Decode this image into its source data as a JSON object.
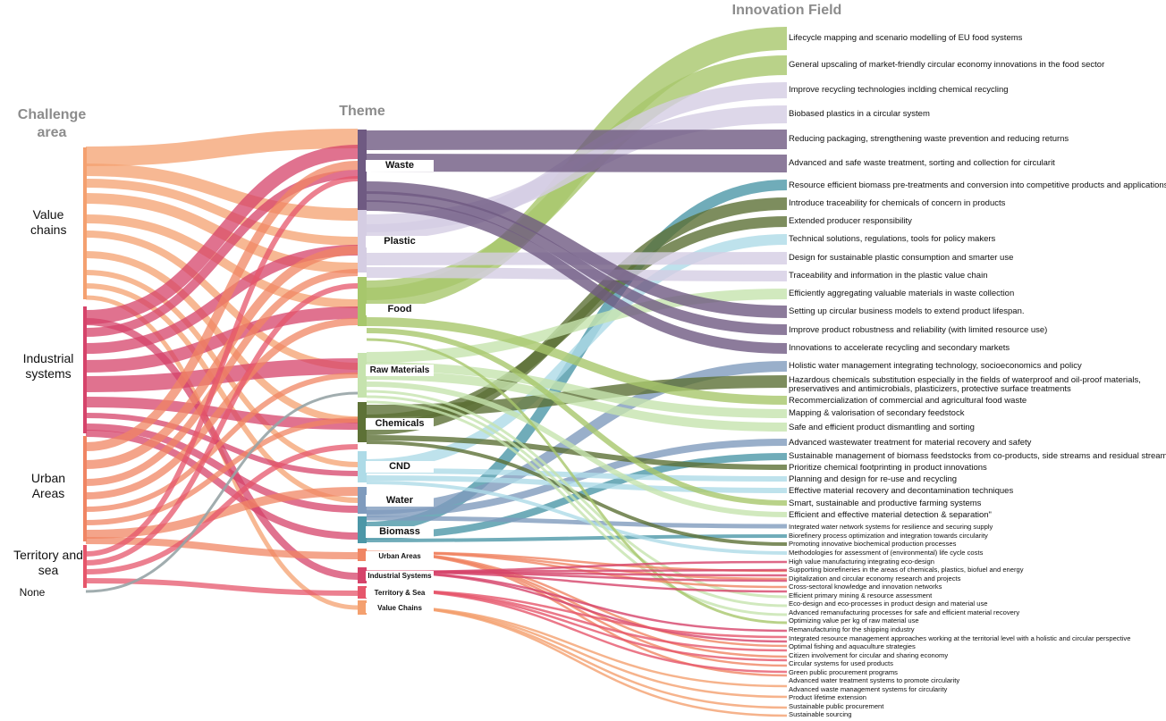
{
  "headers": {
    "challenge_area": "Challenge area",
    "theme": "Theme",
    "innovation_field": "Innovation Field"
  },
  "challenge_areas": [
    {
      "label": "Value chains",
      "color": "#f4a06f"
    },
    {
      "label": "Industrial systems",
      "color": "#d6436a"
    },
    {
      "label": "Urban Areas",
      "color": "#f08563"
    },
    {
      "label": "Territory and sea",
      "color": "#e6566b"
    },
    {
      "label": "None",
      "color": "#97a4a6"
    }
  ],
  "themes": [
    {
      "label": "Waste",
      "color": "#6f5a82"
    },
    {
      "label": "Plastic",
      "color": "#d5cde3"
    },
    {
      "label": "Food",
      "color": "#a7c76c"
    },
    {
      "label": "Raw Materials",
      "color": "#c6e3ae"
    },
    {
      "label": "Chemicals",
      "color": "#5d7136"
    },
    {
      "label": "CND",
      "color": "#aedbe7"
    },
    {
      "label": "Water",
      "color": "#7f9bbd"
    },
    {
      "label": "Biomass",
      "color": "#4c97a7"
    },
    {
      "label": "Urban Areas",
      "color": "#f08563"
    },
    {
      "label": "Industrial Systems",
      "color": "#d6436a"
    },
    {
      "label": "Territory & Sea",
      "color": "#e6566b"
    },
    {
      "label": "Value Chains",
      "color": "#f4a06f"
    }
  ],
  "innovation_fields": [
    "Lifecycle mapping and scenario modelling of EU food systems",
    "General upscaling of market-friendly circular economy innovations in the food sector",
    "Improve recycling technologies inclding chemical recycling",
    "Biobased plastics in a circular system",
    "Reducing packaging, strengthening waste prevention and reducing returns",
    "Advanced and safe waste treatment, sorting and collection for circularit",
    "Resource efficient biomass pre-treatments and conversion into competitive products and applications",
    "Introduce traceability for chemicals of concern in products",
    "Extended producer responsibility",
    "Technical solutions, regulations, tools for policy makers",
    "Design for sustainable plastic consumption and smarter use",
    "Traceability and information in the plastic value chain",
    "Efficiently aggregating valuable materials in waste collection",
    "Setting up circular business models to extend product lifespan.",
    "Improve product robustness and reliability (with limited resource use)",
    "Innovations to accelerate recycling and secondary markets",
    "Holistic water management integrating technology, socioeconomics and policy",
    "Hazardous chemicals substitution especially in the fields of waterproof and oil-proof materials,",
    "preservatives and antimicrobials, plasticizers, protective surface treatments",
    "Recommercialization of commercial and agricultural food waste",
    "Mapping & valorisation of secondary feedstock",
    "Safe and efficient product dismantling and sorting",
    "Advanced wastewater treatment for material recovery and safety",
    "Sustainable management of biomass feedstocks from co-products, side streams and residual streams",
    "Prioritize chemical footprinting in product innovations",
    "Planning and design for re-use and recycling",
    "Effective material recovery and decontamination techniques",
    "Smart, sustainable and productive farming systems",
    "Efficient and effective material detection & separation\"",
    "Integrated water network systems for resilience and securing supply",
    "Biorefinery process optimization and integration towards circularity",
    "Promoting innovative biochemical production processes",
    "Methodologies for assessment of (environmental) life cycle costs",
    "High value manufacturing integrating eco-design",
    "Supporting biorefineries in the areas of chemicals, plastics, biofuel and energy",
    "Digitalization and circular economy research and projects",
    "Cross-sectoral knowledge and innovation networks",
    "Efficient primary mining & resource assessment",
    "Eco-design and eco-processes in product design and material use",
    "Advanced remanufacturing processes for safe and efficient material recovery",
    "Optimizing value per kg of raw material use",
    "Remanufacturing for the shipping industry",
    "Integrated resource management approaches working at the territorial level with a holistic and circular perspective",
    " Optimal fishing and aquaculture strategies",
    "Citizen involvement for circular and sharing economy",
    "Circular systems for used products",
    "Green public procurement programs",
    "Advanced water treatment systems to promote circularity",
    "Advanced waste management systems for circularity",
    "Product lifetime extension",
    "Sustainable public procurement",
    "Sustainable sourcing"
  ]
}
